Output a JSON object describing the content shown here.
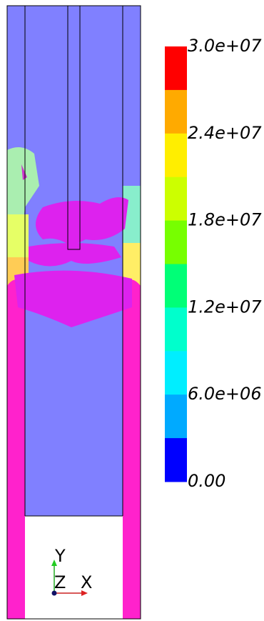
{
  "colorbar": {
    "labels": [
      "3.0e+07",
      "2.4e+07",
      "1.8e+07",
      "1.2e+07",
      "6.0e+06",
      "0.00"
    ],
    "colors": [
      "#ff0000",
      "#ffaa00",
      "#ffee00",
      "#ccff00",
      "#77ff00",
      "#00ff77",
      "#00ffcc",
      "#00eeff",
      "#00aaff",
      "#0000ff"
    ]
  },
  "axes_triad": {
    "y": "Y",
    "z": "Z",
    "x": "X"
  }
}
